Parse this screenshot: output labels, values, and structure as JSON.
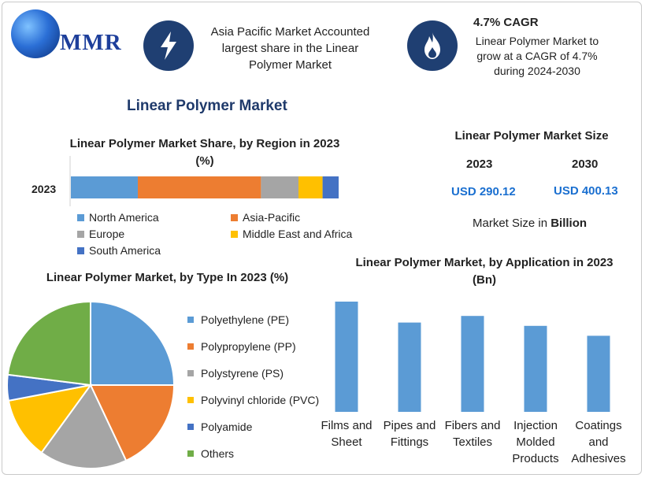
{
  "brand": {
    "logo_text": "MMR",
    "icon": "globe-logo-icon"
  },
  "header": {
    "item1": {
      "icon": "lightning-icon",
      "text": "Asia Pacific Market Accounted largest share in the Linear Polymer Market"
    },
    "item2": {
      "icon": "flame-icon",
      "title": "4.7% CAGR",
      "text": "Linear Polymer Market to grow at a CAGR of 4.7% during 2024-2030"
    }
  },
  "main_title": "Linear Polymer Market",
  "region_chart_title": "Linear Polymer Market Share, by Region in 2023 (%)",
  "market_size": {
    "title": "Linear Polymer Market Size",
    "year1": "2023",
    "year2": "2030",
    "value1": "USD 290.12",
    "value2": "USD 400.13",
    "note_prefix": "Market Size in ",
    "note_bold": "Billion"
  },
  "type_chart_title": "Linear Polymer Market, by Type In 2023 (%)",
  "application_chart_title": "Linear Polymer Market, by Application in 2023 (Bn)",
  "chart_data": [
    {
      "type": "bar",
      "orientation": "horizontal-stacked",
      "title": "Linear Polymer Market Share, by Region in 2023 (%)",
      "categories": [
        "2023"
      ],
      "series": [
        {
          "name": "North America",
          "values": [
            25
          ],
          "color": "#5b9bd5"
        },
        {
          "name": "Asia-Pacific",
          "values": [
            46
          ],
          "color": "#ed7d31"
        },
        {
          "name": "Europe",
          "values": [
            14
          ],
          "color": "#a5a5a5"
        },
        {
          "name": "Middle East and Africa",
          "values": [
            9
          ],
          "color": "#ffc000"
        },
        {
          "name": "South America",
          "values": [
            6
          ],
          "color": "#4472c4"
        }
      ],
      "xlim": [
        0,
        100
      ],
      "legend_position": "bottom"
    },
    {
      "type": "pie",
      "title": "Linear Polymer Market, by Type In 2023 (%)",
      "labels": [
        "Polyethylene (PE)",
        "Polypropylene (PP)",
        "Polystyrene (PS)",
        "Polyvinyl chloride (PVC)",
        "Polyamide",
        "Others"
      ],
      "values": [
        25,
        18,
        17,
        12,
        5,
        23
      ],
      "colors": [
        "#5b9bd5",
        "#ed7d31",
        "#a5a5a5",
        "#ffc000",
        "#4472c4",
        "#70ad47"
      ],
      "legend_position": "right"
    },
    {
      "type": "bar",
      "title": "Linear Polymer Market, by Application in 2023 (Bn)",
      "categories": [
        "Films and Sheet",
        "Pipes and Fittings",
        "Fibers and Textiles",
        "Injection Molded Products",
        "Coatings and Adhesives"
      ],
      "category_lines": [
        [
          "Films and",
          "Sheet"
        ],
        [
          "Pipes and",
          "Fittings"
        ],
        [
          "Fibers and",
          "Textiles"
        ],
        [
          "Injection",
          "Molded",
          "Products"
        ],
        [
          "Coatings",
          "and",
          "Adhesives"
        ]
      ],
      "values": [
        100,
        81,
        87,
        78,
        69
      ],
      "color": "#5b9bd5",
      "ylim": [
        0,
        100
      ],
      "grid": false
    }
  ]
}
